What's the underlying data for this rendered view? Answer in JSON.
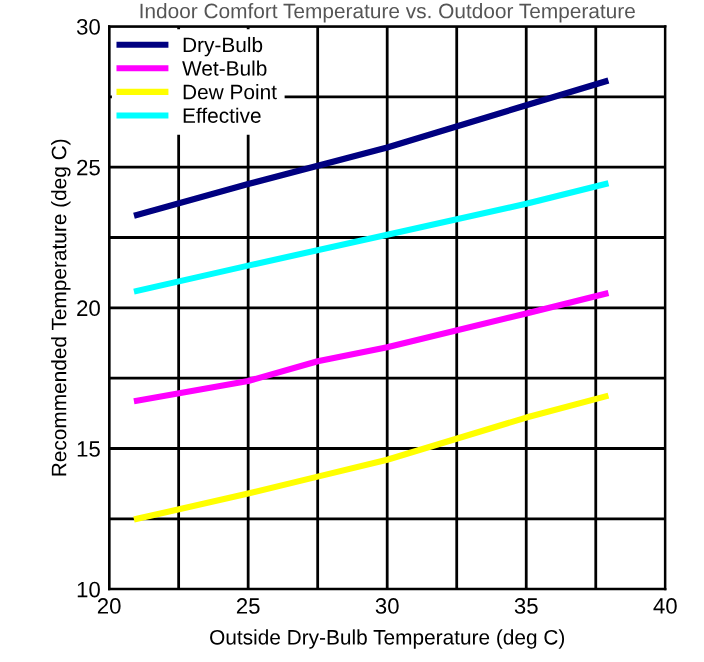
{
  "chart_data": {
    "type": "line",
    "title": "Indoor Comfort Temperature vs. Outdoor Temperature",
    "xlabel": "Outside Dry-Bulb Temperature (deg C)",
    "ylabel": "Recommended Temperature (deg C)",
    "xlim": [
      20,
      40
    ],
    "ylim": [
      10,
      30
    ],
    "xticks": [
      20,
      {
        "value": 22.5,
        "label": null
      },
      25,
      {
        "value": 27.5,
        "label": null
      },
      30,
      {
        "value": 32.5,
        "label": null
      },
      35,
      {
        "value": 37.5,
        "label": null
      },
      40
    ],
    "yticks": [
      10,
      {
        "value": 12.5,
        "label": null
      },
      15,
      {
        "value": 17.5,
        "label": null
      },
      20,
      {
        "value": 22.5,
        "label": null
      },
      25,
      {
        "value": 27.5,
        "label": null
      },
      30
    ],
    "grid": true,
    "legend": "top left",
    "marker": "none",
    "line_style": "solid",
    "series": [
      {
        "name": "Dry-Bulb",
        "color": "#000080",
        "x": [
          21,
          25,
          30,
          35,
          37.85
        ],
        "values": [
          23.3,
          24.4,
          25.7,
          27.2,
          28.05
        ]
      },
      {
        "name": "Wet-Bulb",
        "color": "#ff00ff",
        "x": [
          21,
          25,
          27.5,
          30,
          35,
          37.85
        ],
        "values": [
          16.7,
          17.4,
          18.1,
          18.6,
          19.8,
          20.5
        ]
      },
      {
        "name": "Dew Point",
        "color": "#ffff00",
        "x": [
          21,
          25,
          27.5,
          30,
          35,
          37.85
        ],
        "values": [
          12.5,
          13.4,
          14.0,
          14.6,
          16.1,
          16.85
        ]
      },
      {
        "name": "Effective",
        "color": "#00ffff",
        "x": [
          21,
          25,
          30,
          35,
          37.85
        ],
        "values": [
          20.6,
          21.5,
          22.6,
          23.7,
          24.4
        ]
      }
    ]
  }
}
